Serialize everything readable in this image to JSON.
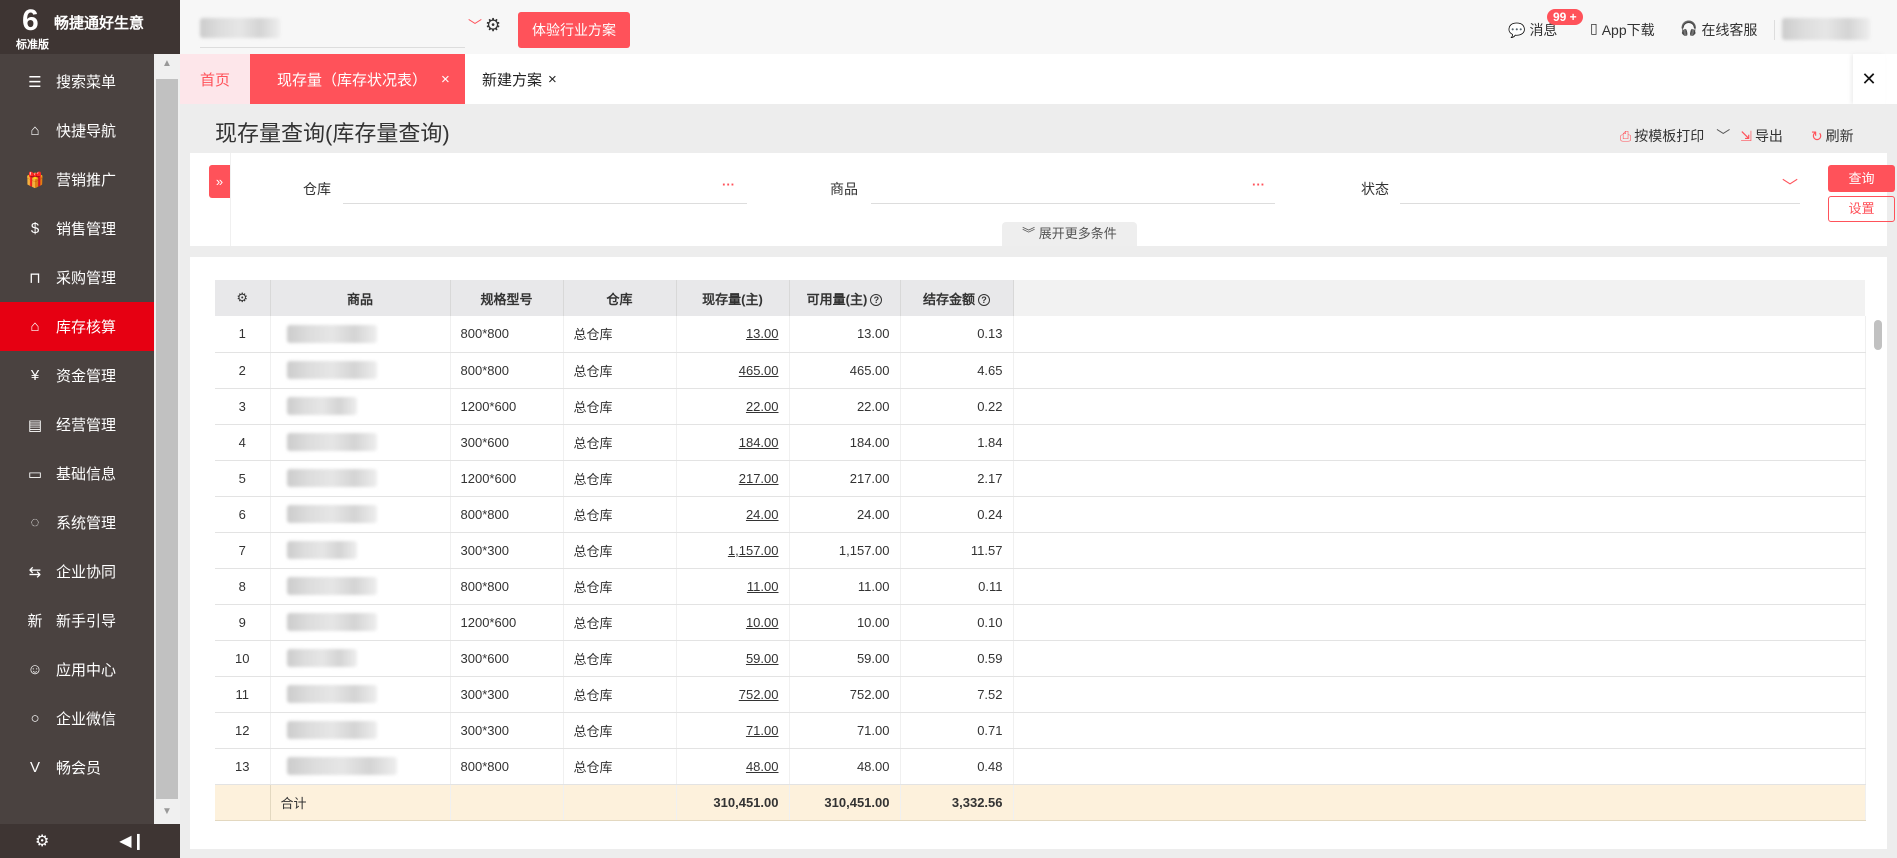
{
  "brand": {
    "name": "畅捷通好生意",
    "edition": "标准版",
    "logo_letter": "6"
  },
  "sidebar": {
    "items": [
      {
        "label": "搜索菜单",
        "icon": "search-menu-icon",
        "glyph": "☰"
      },
      {
        "label": "快捷导航",
        "icon": "home-icon",
        "glyph": "⌂"
      },
      {
        "label": "营销推广",
        "icon": "gift-icon",
        "glyph": "🎁"
      },
      {
        "label": "销售管理",
        "icon": "sales-icon",
        "glyph": "$"
      },
      {
        "label": "采购管理",
        "icon": "shopping-bag-icon",
        "glyph": "⊓"
      },
      {
        "label": "库存核算",
        "icon": "warehouse-icon",
        "glyph": "⌂",
        "active": true
      },
      {
        "label": "资金管理",
        "icon": "money-bag-icon",
        "glyph": "¥"
      },
      {
        "label": "经营管理",
        "icon": "clipboard-icon",
        "glyph": "▤"
      },
      {
        "label": "基础信息",
        "icon": "id-card-icon",
        "glyph": "▭"
      },
      {
        "label": "系统管理",
        "icon": "system-icon",
        "glyph": "◌"
      },
      {
        "label": "企业协同",
        "icon": "collaboration-icon",
        "glyph": "⇆"
      },
      {
        "label": "新手引导",
        "icon": "new-guide-icon",
        "glyph": "新"
      },
      {
        "label": "应用中心",
        "icon": "app-center-icon",
        "glyph": "☺"
      },
      {
        "label": "企业微信",
        "icon": "wechat-work-icon",
        "glyph": "○"
      },
      {
        "label": "畅会员",
        "icon": "vip-icon",
        "glyph": "V"
      }
    ]
  },
  "topbar": {
    "trial_button": "体验行业方案",
    "messages": "消息",
    "badge": "99 +",
    "app_download": "App下载",
    "online_service": "在线客服"
  },
  "tabs": [
    {
      "label": "首页"
    },
    {
      "label": "现存量（库存状况表）",
      "close": "×"
    },
    {
      "label": "新建方案",
      "close": "×"
    }
  ],
  "close_all": "✕",
  "page": {
    "title": "现存量查询(库存量查询)",
    "print": "按模板打印",
    "export": "导出",
    "refresh": "刷新"
  },
  "filter": {
    "warehouse_label": "仓库",
    "product_label": "商品",
    "status_label": "状态",
    "more": "···",
    "expand": "展开更多条件",
    "query": "查询",
    "settings": "设置"
  },
  "table": {
    "headers": [
      "商品",
      "规格型号",
      "仓库",
      "现存量(主)",
      "可用量(主)",
      "结存金额"
    ],
    "rows": [
      [
        "1",
        "800*800",
        "总仓库",
        "13.00",
        "13.00",
        "0.13"
      ],
      [
        "2",
        "800*800",
        "总仓库",
        "465.00",
        "465.00",
        "4.65"
      ],
      [
        "3",
        "1200*600",
        "总仓库",
        "22.00",
        "22.00",
        "0.22"
      ],
      [
        "4",
        "300*600",
        "总仓库",
        "184.00",
        "184.00",
        "1.84"
      ],
      [
        "5",
        "1200*600",
        "总仓库",
        "217.00",
        "217.00",
        "2.17"
      ],
      [
        "6",
        "800*800",
        "总仓库",
        "24.00",
        "24.00",
        "0.24"
      ],
      [
        "7",
        "300*300",
        "总仓库",
        "1,157.00",
        "1,157.00",
        "11.57"
      ],
      [
        "8",
        "800*800",
        "总仓库",
        "11.00",
        "11.00",
        "0.11"
      ],
      [
        "9",
        "1200*600",
        "总仓库",
        "10.00",
        "10.00",
        "0.10"
      ],
      [
        "10",
        "300*600",
        "总仓库",
        "59.00",
        "59.00",
        "0.59"
      ],
      [
        "11",
        "300*300",
        "总仓库",
        "752.00",
        "752.00",
        "7.52"
      ],
      [
        "12",
        "300*300",
        "总仓库",
        "71.00",
        "71.00",
        "0.71"
      ],
      [
        "13",
        "800*800",
        "总仓库",
        "48.00",
        "48.00",
        "0.48"
      ]
    ],
    "total": {
      "label": "合计",
      "stock": "310,451.00",
      "available": "310,451.00",
      "amount": "3,332.56"
    }
  },
  "colors": {
    "accent": "#ff525a",
    "sidebar": "#4a4240",
    "active": "#e60012"
  }
}
